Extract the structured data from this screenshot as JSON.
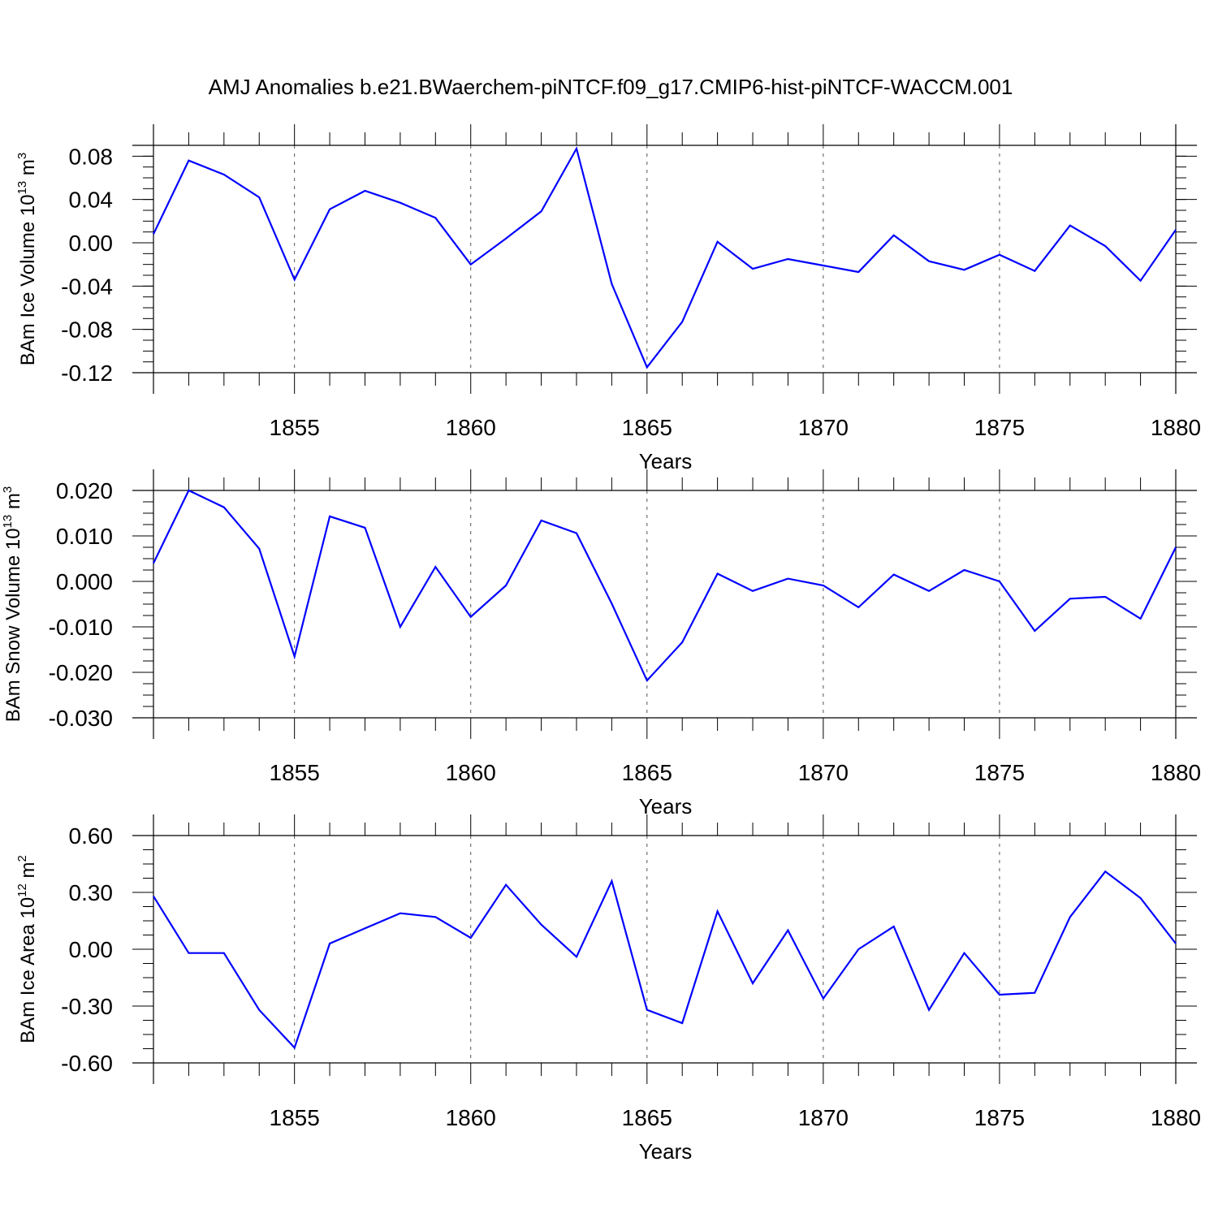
{
  "title": "AMJ Anomalies b.e21.BWaerchem-piNTCF.f09_g17.CMIP6-hist-piNTCF-WACCM.001",
  "colors": {
    "line": "#0000ff",
    "axis": "#000000",
    "grid": "#555555",
    "background": "#ffffff"
  },
  "chart_data": [
    {
      "type": "line",
      "ylabel_main": "BAm Ice Volume 10",
      "ylabel_exp": "13",
      "ylabel_unit": " m",
      "ylabel_unit_exp": "3",
      "xlabel": "Years",
      "xlim": [
        1851,
        1880
      ],
      "ylim": [
        -0.12,
        0.09
      ],
      "yticks": [
        -0.12,
        -0.08,
        -0.04,
        0.0,
        0.04,
        0.08
      ],
      "ytick_labels": [
        "-0.12",
        "-0.08",
        "-0.04",
        "0.00",
        "0.04",
        "0.08"
      ],
      "xticks": [
        1855,
        1860,
        1865,
        1870,
        1875,
        1880
      ],
      "xtick_labels": [
        "1855",
        "1860",
        "1865",
        "1870",
        "1875",
        "1880"
      ],
      "x": [
        1851,
        1852,
        1853,
        1854,
        1855,
        1856,
        1857,
        1858,
        1859,
        1860,
        1861,
        1862,
        1863,
        1864,
        1865,
        1866,
        1867,
        1868,
        1869,
        1870,
        1871,
        1872,
        1873,
        1874,
        1875,
        1876,
        1877,
        1878,
        1879,
        1880
      ],
      "series": [
        {
          "name": "BAm Ice Volume",
          "values": [
            0.008,
            0.076,
            0.063,
            0.042,
            -0.034,
            0.031,
            0.048,
            0.037,
            0.023,
            -0.02,
            0.004,
            0.029,
            0.087,
            -0.038,
            -0.115,
            -0.073,
            0.001,
            -0.024,
            -0.015,
            -0.021,
            -0.027,
            0.007,
            -0.017,
            -0.025,
            -0.011,
            -0.026,
            0.016,
            -0.003,
            -0.035,
            0.012
          ]
        }
      ]
    },
    {
      "type": "line",
      "ylabel_main": "BAm Snow Volume 10",
      "ylabel_exp": "13",
      "ylabel_unit": " m",
      "ylabel_unit_exp": "3",
      "xlabel": "Years",
      "xlim": [
        1851,
        1880
      ],
      "ylim": [
        -0.03,
        0.02
      ],
      "yticks": [
        -0.03,
        -0.02,
        -0.01,
        0.0,
        0.01,
        0.02
      ],
      "ytick_labels": [
        "-0.030",
        "-0.020",
        "-0.010",
        "0.000",
        "0.010",
        "0.020"
      ],
      "xticks": [
        1855,
        1860,
        1865,
        1870,
        1875,
        1880
      ],
      "xtick_labels": [
        "1855",
        "1860",
        "1865",
        "1870",
        "1875",
        "1880"
      ],
      "x": [
        1851,
        1852,
        1853,
        1854,
        1855,
        1856,
        1857,
        1858,
        1859,
        1860,
        1861,
        1862,
        1863,
        1864,
        1865,
        1866,
        1867,
        1868,
        1869,
        1870,
        1871,
        1872,
        1873,
        1874,
        1875,
        1876,
        1877,
        1878,
        1879,
        1880
      ],
      "series": [
        {
          "name": "BAm Snow Volume",
          "values": [
            0.004,
            0.02,
            0.0163,
            0.0072,
            -0.0165,
            0.0143,
            0.0118,
            -0.01,
            0.0032,
            -0.0078,
            -0.0009,
            0.0134,
            0.0106,
            -0.0049,
            -0.0218,
            -0.0134,
            0.0017,
            -0.0021,
            0.0006,
            -0.0009,
            -0.0057,
            0.0015,
            -0.0021,
            0.0025,
            0.0,
            -0.0109,
            -0.0038,
            -0.0034,
            -0.0082,
            0.0075
          ]
        }
      ]
    },
    {
      "type": "line",
      "ylabel_main": "BAm Ice Area 10",
      "ylabel_exp": "12",
      "ylabel_unit": " m",
      "ylabel_unit_exp": "2",
      "xlabel": "Years",
      "xlim": [
        1851,
        1880
      ],
      "ylim": [
        -0.6,
        0.6
      ],
      "yticks": [
        -0.6,
        -0.3,
        0.0,
        0.3,
        0.6
      ],
      "ytick_labels": [
        "-0.60",
        "-0.30",
        "0.00",
        "0.30",
        "0.60"
      ],
      "xticks": [
        1855,
        1860,
        1865,
        1870,
        1875,
        1880
      ],
      "xtick_labels": [
        "1855",
        "1860",
        "1865",
        "1870",
        "1875",
        "1880"
      ],
      "x": [
        1851,
        1852,
        1853,
        1854,
        1855,
        1856,
        1857,
        1858,
        1859,
        1860,
        1861,
        1862,
        1863,
        1864,
        1865,
        1866,
        1867,
        1868,
        1869,
        1870,
        1871,
        1872,
        1873,
        1874,
        1875,
        1876,
        1877,
        1878,
        1879,
        1880
      ],
      "series": [
        {
          "name": "BAm Ice Area",
          "values": [
            0.28,
            -0.02,
            -0.02,
            -0.32,
            -0.52,
            0.03,
            0.11,
            0.19,
            0.17,
            0.06,
            0.34,
            0.13,
            -0.04,
            0.36,
            -0.32,
            -0.39,
            0.2,
            -0.18,
            0.1,
            -0.26,
            0.0,
            0.12,
            -0.32,
            -0.02,
            -0.24,
            -0.23,
            0.17,
            0.41,
            0.27,
            0.03
          ]
        }
      ]
    }
  ]
}
